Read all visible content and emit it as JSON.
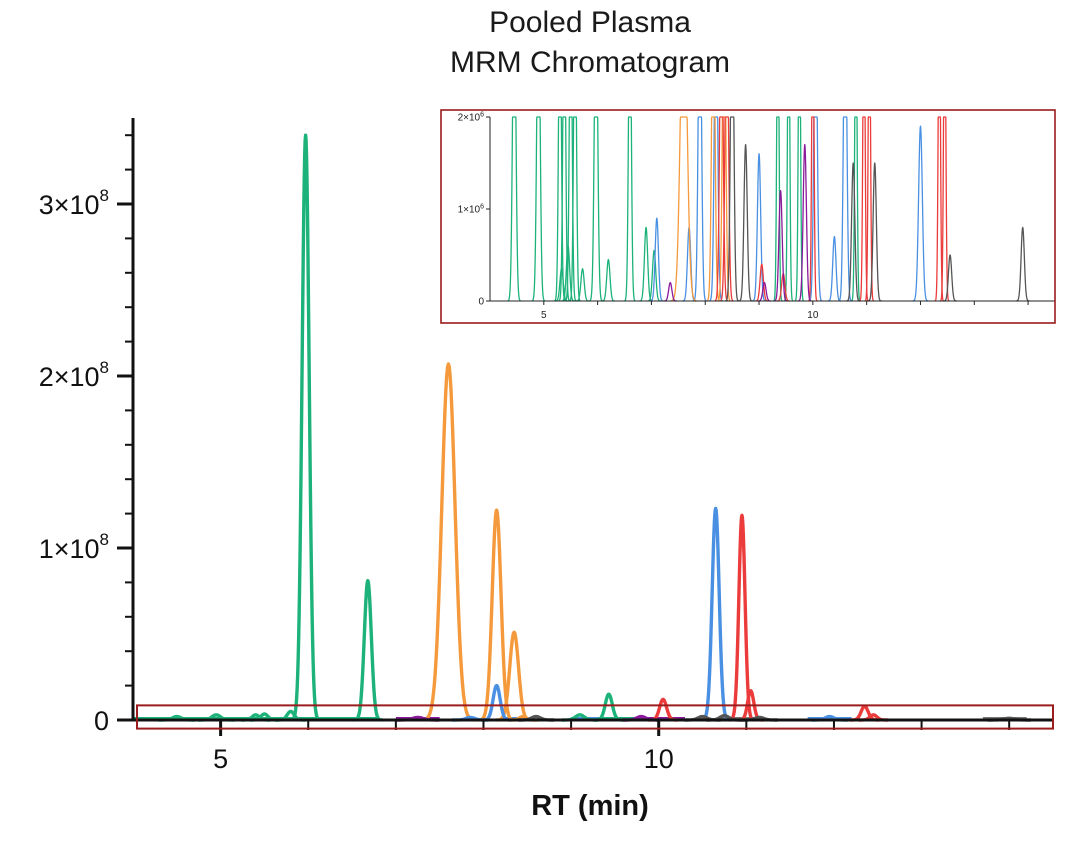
{
  "chart_data": {
    "type": "line",
    "title_lines": [
      "Pooled Plasma",
      "MRM Chromatogram"
    ],
    "xlabel": "RT (min)",
    "ylabel": "",
    "xlim": [
      4.0,
      14.5
    ],
    "ylim": [
      0,
      350000000
    ],
    "x_ticks": [
      5,
      10
    ],
    "y_ticks": [
      {
        "value": 0,
        "mant": "0",
        "exp": ""
      },
      {
        "value": 100000000,
        "mant": "1×10",
        "exp": "8"
      },
      {
        "value": 200000000,
        "mant": "2×10",
        "exp": "8"
      },
      {
        "value": 300000000,
        "mant": "3×10",
        "exp": "8"
      }
    ],
    "highlight_box": {
      "x_range": [
        4.0,
        14.5
      ],
      "y_range": [
        -5000000,
        8500000
      ],
      "color": "#9b1c1c"
    },
    "series": [
      {
        "name": "green",
        "color": "#1cb27a",
        "peaks": [
          {
            "rt": 4.5,
            "height": 2000000,
            "width": 0.05
          },
          {
            "rt": 4.95,
            "height": 3000000,
            "width": 0.05
          },
          {
            "rt": 5.4,
            "height": 3000000,
            "width": 0.04
          },
          {
            "rt": 5.5,
            "height": 3500000,
            "width": 0.04
          },
          {
            "rt": 5.8,
            "height": 5000000,
            "width": 0.04
          },
          {
            "rt": 5.97,
            "height": 340000000,
            "width": 0.04
          },
          {
            "rt": 6.68,
            "height": 81000000,
            "width": 0.04
          },
          {
            "rt": 9.1,
            "height": 3000000,
            "width": 0.05
          },
          {
            "rt": 9.43,
            "height": 15000000,
            "width": 0.04
          }
        ]
      },
      {
        "name": "orange",
        "color": "#f59a3c",
        "peaks": [
          {
            "rt": 7.6,
            "height": 207000000,
            "width": 0.075
          },
          {
            "rt": 8.15,
            "height": 122000000,
            "width": 0.05
          },
          {
            "rt": 8.35,
            "height": 51000000,
            "width": 0.05
          },
          {
            "rt": 8.45,
            "height": 2000000,
            "width": 0.04
          }
        ]
      },
      {
        "name": "blue",
        "color": "#4a90e2",
        "peaks": [
          {
            "rt": 7.85,
            "height": 1500000,
            "width": 0.05
          },
          {
            "rt": 8.15,
            "height": 20000000,
            "width": 0.04
          },
          {
            "rt": 10.65,
            "height": 123000000,
            "width": 0.04
          },
          {
            "rt": 11.95,
            "height": 2000000,
            "width": 0.05
          }
        ]
      },
      {
        "name": "red",
        "color": "#ec3b3b",
        "peaks": [
          {
            "rt": 10.05,
            "height": 12000000,
            "width": 0.04
          },
          {
            "rt": 10.95,
            "height": 119000000,
            "width": 0.035
          },
          {
            "rt": 11.05,
            "height": 17000000,
            "width": 0.035
          },
          {
            "rt": 12.35,
            "height": 8000000,
            "width": 0.04
          },
          {
            "rt": 12.45,
            "height": 3000000,
            "width": 0.04
          }
        ]
      },
      {
        "name": "purple",
        "color": "#8a1a9b",
        "peaks": [
          {
            "rt": 7.25,
            "height": 1500000,
            "width": 0.06
          },
          {
            "rt": 9.8,
            "height": 2000000,
            "width": 0.05
          }
        ]
      },
      {
        "name": "gray",
        "color": "#555555",
        "peaks": [
          {
            "rt": 8.6,
            "height": 2000000,
            "width": 0.05
          },
          {
            "rt": 10.5,
            "height": 2000000,
            "width": 0.05
          },
          {
            "rt": 10.75,
            "height": 2500000,
            "width": 0.05
          },
          {
            "rt": 11.15,
            "height": 1500000,
            "width": 0.05
          },
          {
            "rt": 14.0,
            "height": 1000000,
            "width": 0.06
          }
        ]
      }
    ],
    "baseline_segments": [
      {
        "x0": 4.0,
        "x1": 6.8,
        "color": "#1cb27a"
      },
      {
        "x0": 7.0,
        "x1": 7.5,
        "color": "#8a1a9b"
      },
      {
        "x0": 8.2,
        "x1": 8.5,
        "color": "#4a90e2"
      },
      {
        "x0": 9.0,
        "x1": 9.35,
        "color": "#4a90e2"
      },
      {
        "x0": 9.35,
        "x1": 9.8,
        "color": "#1cb27a"
      },
      {
        "x0": 9.8,
        "x1": 10.3,
        "color": "#8a1a9b"
      },
      {
        "x0": 10.7,
        "x1": 11.2,
        "color": "#777777"
      },
      {
        "x0": 11.7,
        "x1": 12.2,
        "color": "#4a90e2"
      },
      {
        "x0": 13.7,
        "x1": 14.2,
        "color": "#777777"
      }
    ],
    "inset": {
      "xlim": [
        4.0,
        14.5
      ],
      "ylim": [
        0,
        2000000
      ],
      "x_ticks": [
        5,
        10
      ],
      "y_ticks": [
        {
          "value": 0,
          "mant": "0",
          "exp": ""
        },
        {
          "value": 1000000,
          "mant": "1×10",
          "exp": "6"
        },
        {
          "value": 2000000,
          "mant": "2×10",
          "exp": "6"
        }
      ],
      "border_color": "#9b1c1c",
      "series": [
        {
          "name": "green",
          "color": "#1cb27a",
          "peaks": [
            {
              "rt": 4.45,
              "height": 3500000,
              "width": 0.03
            },
            {
              "rt": 4.9,
              "height": 3500000,
              "width": 0.03
            },
            {
              "rt": 5.3,
              "height": 3500000,
              "width": 0.025
            },
            {
              "rt": 5.38,
              "height": 3500000,
              "width": 0.025
            },
            {
              "rt": 5.5,
              "height": 3500000,
              "width": 0.025
            },
            {
              "rt": 5.58,
              "height": 3500000,
              "width": 0.025
            },
            {
              "rt": 5.97,
              "height": 3500000,
              "width": 0.03
            },
            {
              "rt": 6.6,
              "height": 3500000,
              "width": 0.025
            },
            {
              "rt": 5.33,
              "height": 350000,
              "width": 0.03
            },
            {
              "rt": 5.45,
              "height": 600000,
              "width": 0.03
            },
            {
              "rt": 5.72,
              "height": 350000,
              "width": 0.03
            },
            {
              "rt": 6.2,
              "height": 450000,
              "width": 0.03
            },
            {
              "rt": 6.9,
              "height": 800000,
              "width": 0.03
            },
            {
              "rt": 7.05,
              "height": 550000,
              "width": 0.03
            },
            {
              "rt": 9.35,
              "height": 3500000,
              "width": 0.02
            },
            {
              "rt": 9.55,
              "height": 3500000,
              "width": 0.02
            },
            {
              "rt": 9.75,
              "height": 3500000,
              "width": 0.02
            },
            {
              "rt": 10.8,
              "height": 3500000,
              "width": 0.02
            }
          ]
        },
        {
          "name": "blue",
          "color": "#4a90e2",
          "peaks": [
            {
              "rt": 7.1,
              "height": 900000,
              "width": 0.03
            },
            {
              "rt": 7.7,
              "height": 800000,
              "width": 0.03
            },
            {
              "rt": 7.9,
              "height": 3500000,
              "width": 0.03
            },
            {
              "rt": 8.2,
              "height": 3500000,
              "width": 0.03
            },
            {
              "rt": 9.0,
              "height": 1600000,
              "width": 0.03
            },
            {
              "rt": 10.05,
              "height": 3500000,
              "width": 0.03
            },
            {
              "rt": 10.4,
              "height": 700000,
              "width": 0.03
            },
            {
              "rt": 10.6,
              "height": 3500000,
              "width": 0.03
            },
            {
              "rt": 12.0,
              "height": 1900000,
              "width": 0.035
            }
          ]
        },
        {
          "name": "orange",
          "color": "#f59a3c",
          "peaks": [
            {
              "rt": 7.6,
              "height": 3500000,
              "width": 0.06
            },
            {
              "rt": 8.15,
              "height": 3500000,
              "width": 0.03
            },
            {
              "rt": 8.35,
              "height": 3500000,
              "width": 0.03
            }
          ]
        },
        {
          "name": "red",
          "color": "#ec3b3b",
          "peaks": [
            {
              "rt": 8.3,
              "height": 3500000,
              "width": 0.03
            },
            {
              "rt": 8.4,
              "height": 3500000,
              "width": 0.03
            },
            {
              "rt": 9.05,
              "height": 400000,
              "width": 0.03
            },
            {
              "rt": 9.45,
              "height": 300000,
              "width": 0.03
            },
            {
              "rt": 10.0,
              "height": 3500000,
              "width": 0.02
            },
            {
              "rt": 10.95,
              "height": 3500000,
              "width": 0.02
            },
            {
              "rt": 11.05,
              "height": 3500000,
              "width": 0.02
            },
            {
              "rt": 12.35,
              "height": 3500000,
              "width": 0.02
            },
            {
              "rt": 12.45,
              "height": 3500000,
              "width": 0.02
            }
          ]
        },
        {
          "name": "purple",
          "color": "#8a1a9b",
          "peaks": [
            {
              "rt": 7.35,
              "height": 200000,
              "width": 0.03
            },
            {
              "rt": 9.85,
              "height": 1700000,
              "width": 0.03
            },
            {
              "rt": 9.4,
              "height": 1200000,
              "width": 0.03
            },
            {
              "rt": 9.1,
              "height": 200000,
              "width": 0.03
            }
          ]
        },
        {
          "name": "gray",
          "color": "#555555",
          "peaks": [
            {
              "rt": 8.5,
              "height": 3500000,
              "width": 0.03
            },
            {
              "rt": 8.75,
              "height": 1700000,
              "width": 0.03
            },
            {
              "rt": 10.75,
              "height": 1500000,
              "width": 0.03
            },
            {
              "rt": 11.15,
              "height": 1500000,
              "width": 0.03
            },
            {
              "rt": 12.55,
              "height": 500000,
              "width": 0.03
            },
            {
              "rt": 13.9,
              "height": 800000,
              "width": 0.03
            }
          ]
        }
      ]
    }
  }
}
